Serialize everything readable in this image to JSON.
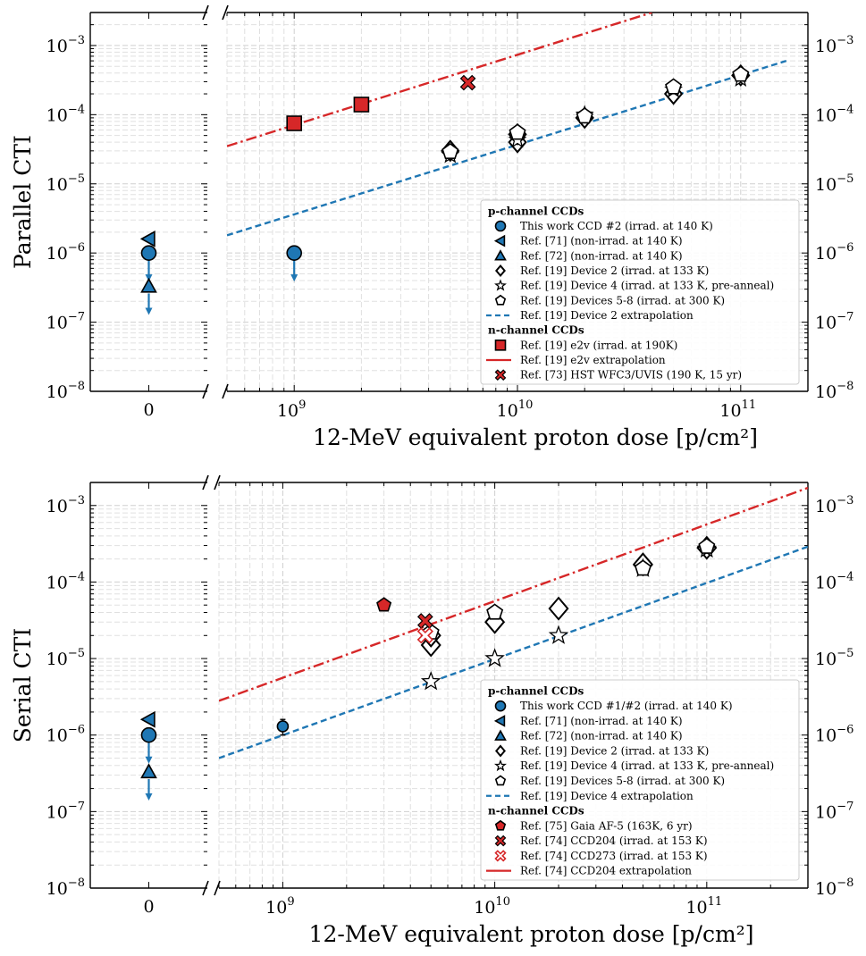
{
  "colors": {
    "blue": "#1f77b4",
    "red": "#d62728",
    "white": "#ffffff",
    "black": "#000000"
  },
  "chart_data": [
    {
      "type": "scatter",
      "ylabel": "Parallel CTI",
      "xlabel": "12-MeV equivalent proton dose [p/cm²]",
      "xscale": "log",
      "yscale": "log",
      "broken_x_axis": true,
      "left_panel_xlim": [
        -0.4,
        0.4
      ],
      "left_panel_xticks": [
        "0"
      ],
      "xlim": [
        500000000,
        200000000000
      ],
      "ylim": [
        1e-08,
        0.003
      ],
      "xticks": [
        {
          "v": 1000000000.0,
          "b": "10",
          "e": "9"
        },
        {
          "v": 10000000000.0,
          "b": "10",
          "e": "10"
        },
        {
          "v": 100000000000.0,
          "b": "10",
          "e": "11"
        }
      ],
      "yticks": [
        {
          "v": 1e-08,
          "b": "10",
          "e": "−8"
        },
        {
          "v": 1e-07,
          "b": "10",
          "e": "−7"
        },
        {
          "v": 1e-06,
          "b": "10",
          "e": "−6"
        },
        {
          "v": 1e-05,
          "b": "10",
          "e": "−5"
        },
        {
          "v": 0.0001,
          "b": "10",
          "e": "−4"
        },
        {
          "v": 0.001,
          "b": "10",
          "e": "−3"
        }
      ],
      "grid": true,
      "legend_position": "lower-right",
      "zero_panel": [
        {
          "marker": "triangle-left",
          "color": "#1f77b4",
          "x": 0,
          "y": 1.6e-06,
          "upper_limit": false
        },
        {
          "marker": "circle",
          "color": "#1f77b4",
          "x": 0,
          "y": 1e-06,
          "upper_limit": true
        },
        {
          "marker": "triangle-up",
          "color": "#1f77b4",
          "x": 0,
          "y": 3.3e-07,
          "upper_limit": true
        }
      ],
      "series": [
        {
          "group": "p",
          "label": "This work CCD #2 (irrad. at 140 K)",
          "marker": "circle",
          "color": "#1f77b4",
          "size": 8,
          "points": [
            {
              "x": 1000000000.0,
              "y": 1e-06,
              "upper_limit": true
            }
          ]
        },
        {
          "group": "p",
          "label": "Ref. [71] (non-irrad. at 140 K)",
          "marker": "triangle-left",
          "color": "#1f77b4",
          "size": 8,
          "points": []
        },
        {
          "group": "p",
          "label": "Ref. [72] (non-irrad. at 140 K)",
          "marker": "triangle-up",
          "color": "#1f77b4",
          "size": 8,
          "points": []
        },
        {
          "group": "p",
          "label": "Ref. [19] Device 2 (irrad. at 133 K)",
          "marker": "diamond",
          "color": "#ffffff",
          "size": 11,
          "points": [
            {
              "x": 5000000000.0,
              "y": 3e-05
            },
            {
              "x": 10000000000.0,
              "y": 4e-05
            },
            {
              "x": 10000000000.0,
              "y": 5.2e-05
            },
            {
              "x": 20000000000.0,
              "y": 9e-05
            },
            {
              "x": 50000000000.0,
              "y": 0.0002
            },
            {
              "x": 100000000000.0,
              "y": 0.00037
            }
          ]
        },
        {
          "group": "p",
          "label": "Ref. [19] Device 4 (irrad. at 133 K, pre-anneal)",
          "marker": "star",
          "color": "#ffffff",
          "size": 9,
          "points": [
            {
              "x": 5000000000.0,
              "y": 2.6e-05
            },
            {
              "x": 10000000000.0,
              "y": 4.3e-05
            },
            {
              "x": 20000000000.0,
              "y": 0.0001
            },
            {
              "x": 50000000000.0,
              "y": 0.00023
            },
            {
              "x": 100000000000.0,
              "y": 0.00033
            }
          ]
        },
        {
          "group": "p",
          "label": "Ref. [19] Devices 5-8 (irrad. at 300 K)",
          "marker": "pentagon",
          "color": "#ffffff",
          "size": 9,
          "points": [
            {
              "x": 5000000000.0,
              "y": 2.9e-05
            },
            {
              "x": 10000000000.0,
              "y": 5.5e-05
            },
            {
              "x": 20000000000.0,
              "y": 9.5e-05
            },
            {
              "x": 50000000000.0,
              "y": 0.00025
            },
            {
              "x": 100000000000.0,
              "y": 0.00038
            }
          ]
        },
        {
          "group": "p",
          "label": "Ref. [19] Device 2 extrapolation",
          "line": "dashed",
          "color": "#1f77b4",
          "segment": [
            {
              "x": 500000000,
              "y": 1.8e-06
            },
            {
              "x": 160000000000,
              "y": 0.0006
            }
          ]
        },
        {
          "group": "n",
          "label": "Ref. [19] e2v (irrad. at 190K)",
          "marker": "square",
          "color": "#d62728",
          "size": 8,
          "points": [
            {
              "x": 1000000000.0,
              "y": 7.5e-05
            },
            {
              "x": 2000000000.0,
              "y": 0.00014
            }
          ]
        },
        {
          "group": "n",
          "label": "Ref. [19] e2v extrapolation",
          "line": "dashdot",
          "color": "#d62728",
          "segment": [
            {
              "x": 500000000,
              "y": 3.5e-05
            },
            {
              "x": 40000000000,
              "y": 0.003
            }
          ]
        },
        {
          "group": "n",
          "label": "Ref. [73] HST WFC3/UVIS (190 K, 15 yr)",
          "marker": "x-filled",
          "color": "#d62728",
          "size": 8,
          "points": [
            {
              "x": 6000000000.0,
              "y": 0.00029
            }
          ]
        }
      ],
      "legend": [
        {
          "kind": "head",
          "label": "p-channel CCDs"
        },
        {
          "kind": "item",
          "ref": 0
        },
        {
          "kind": "item",
          "ref": 1
        },
        {
          "kind": "item",
          "ref": 2
        },
        {
          "kind": "item",
          "ref": 3
        },
        {
          "kind": "item",
          "ref": 4
        },
        {
          "kind": "item",
          "ref": 5
        },
        {
          "kind": "item",
          "ref": 6
        },
        {
          "kind": "head",
          "label": "n-channel CCDs"
        },
        {
          "kind": "item",
          "ref": 7
        },
        {
          "kind": "item",
          "ref": 8
        },
        {
          "kind": "item",
          "ref": 9
        }
      ]
    },
    {
      "type": "scatter",
      "ylabel": "Serial CTI",
      "xlabel": "12-MeV equivalent proton dose [p/cm²]",
      "xscale": "log",
      "yscale": "log",
      "broken_x_axis": true,
      "left_panel_xlim": [
        -0.4,
        0.4
      ],
      "left_panel_xticks": [
        "0"
      ],
      "xlim": [
        500000000,
        300000000000
      ],
      "ylim": [
        1e-08,
        0.002
      ],
      "xticks": [
        {
          "v": 1000000000.0,
          "b": "10",
          "e": "9"
        },
        {
          "v": 10000000000.0,
          "b": "10",
          "e": "10"
        },
        {
          "v": 100000000000.0,
          "b": "10",
          "e": "11"
        }
      ],
      "yticks": [
        {
          "v": 1e-08,
          "b": "10",
          "e": "−8"
        },
        {
          "v": 1e-07,
          "b": "10",
          "e": "−7"
        },
        {
          "v": 1e-06,
          "b": "10",
          "e": "−6"
        },
        {
          "v": 1e-05,
          "b": "10",
          "e": "−5"
        },
        {
          "v": 0.0001,
          "b": "10",
          "e": "−4"
        },
        {
          "v": 0.001,
          "b": "10",
          "e": "−3"
        }
      ],
      "grid": true,
      "legend_position": "lower-right",
      "zero_panel": [
        {
          "marker": "triangle-left",
          "color": "#1f77b4",
          "x": 0,
          "y": 1.6e-06,
          "upper_limit": false
        },
        {
          "marker": "circle",
          "color": "#1f77b4",
          "x": 0,
          "y": 1e-06,
          "upper_limit": true
        },
        {
          "marker": "triangle-up",
          "color": "#1f77b4",
          "x": 0,
          "y": 3.3e-07,
          "upper_limit": true
        }
      ],
      "series": [
        {
          "group": "p",
          "label": "This work CCD #1/#2 (irrad. at 140 K)",
          "marker": "circle",
          "color": "#1f77b4",
          "size": 6,
          "points": [
            {
              "x": 1000000000.0,
              "y": 1.3e-06,
              "yerr": [
                1e-06,
                1.6e-06
              ]
            }
          ]
        },
        {
          "group": "p",
          "label": "Ref. [71] (non-irrad. at 140 K)",
          "marker": "triangle-left",
          "color": "#1f77b4",
          "size": 8,
          "points": []
        },
        {
          "group": "p",
          "label": "Ref. [72] (non-irrad. at 140 K)",
          "marker": "triangle-up",
          "color": "#1f77b4",
          "size": 8,
          "points": []
        },
        {
          "group": "p",
          "label": "Ref. [19] Device 2 (irrad. at 133 K)",
          "marker": "diamond",
          "color": "#ffffff",
          "size": 12,
          "points": [
            {
              "x": 5000000000.0,
              "y": 1.5e-05
            },
            {
              "x": 5000000000.0,
              "y": 2e-05
            },
            {
              "x": 10000000000.0,
              "y": 3e-05
            },
            {
              "x": 20000000000.0,
              "y": 4.5e-05
            },
            {
              "x": 50000000000.0,
              "y": 0.00017
            },
            {
              "x": 100000000000.0,
              "y": 0.00028
            }
          ]
        },
        {
          "group": "p",
          "label": "Ref. [19] Device 4 (irrad. at 133 K, pre-anneal)",
          "marker": "star",
          "color": "#ffffff",
          "size": 10,
          "points": [
            {
              "x": 5000000000.0,
              "y": 5e-06
            },
            {
              "x": 10000000000.0,
              "y": 1e-05
            },
            {
              "x": 20000000000.0,
              "y": 2e-05
            },
            {
              "x": 50000000000.0,
              "y": 0.00015
            },
            {
              "x": 100000000000.0,
              "y": 0.00027
            }
          ]
        },
        {
          "group": "p",
          "label": "Ref. [19] Devices 5-8 (irrad. at 300 K)",
          "marker": "pentagon",
          "color": "#ffffff",
          "size": 9,
          "points": [
            {
              "x": 5000000000.0,
              "y": 2.2e-05
            },
            {
              "x": 10000000000.0,
              "y": 4e-05
            },
            {
              "x": 50000000000.0,
              "y": 0.00015
            },
            {
              "x": 100000000000.0,
              "y": 0.00029
            }
          ]
        },
        {
          "group": "p",
          "label": "Ref. [19] Device 4 extrapolation",
          "line": "dashed",
          "color": "#1f77b4",
          "segment": [
            {
              "x": 500000000,
              "y": 5e-07
            },
            {
              "x": 300000000000,
              "y": 0.00029
            }
          ]
        },
        {
          "group": "n",
          "label": "Ref. [75] Gaia AF-5 (163K, 6 yr)",
          "marker": "pentagon",
          "color": "#d62728",
          "size": 8,
          "points": [
            {
              "x": 3000000000.0,
              "y": 5e-05
            }
          ]
        },
        {
          "group": "n",
          "label": "Ref. [74] CCD204 (irrad. at 153 K)",
          "marker": "x-filled",
          "color": "#d62728",
          "size": 8,
          "points": [
            {
              "x": 4700000000.0,
              "y": 3.1e-05
            }
          ]
        },
        {
          "group": "n",
          "label": "Ref. [74] CCD273 (irrad. at 153 K)",
          "marker": "x-open",
          "color": "#d62728",
          "size": 8,
          "points": [
            {
              "x": 4700000000.0,
              "y": 2e-05
            }
          ]
        },
        {
          "group": "n",
          "label": "Ref. [74] CCD204 extrapolation",
          "line": "dashdot",
          "color": "#d62728",
          "segment": [
            {
              "x": 500000000,
              "y": 2.8e-06
            },
            {
              "x": 300000000000,
              "y": 0.0017
            }
          ]
        }
      ],
      "legend": [
        {
          "kind": "head",
          "label": "p-channel CCDs"
        },
        {
          "kind": "item",
          "ref": 0
        },
        {
          "kind": "item",
          "ref": 1
        },
        {
          "kind": "item",
          "ref": 2
        },
        {
          "kind": "item",
          "ref": 3
        },
        {
          "kind": "item",
          "ref": 4
        },
        {
          "kind": "item",
          "ref": 5
        },
        {
          "kind": "item",
          "ref": 6
        },
        {
          "kind": "head",
          "label": "n-channel CCDs"
        },
        {
          "kind": "item",
          "ref": 7
        },
        {
          "kind": "item",
          "ref": 8
        },
        {
          "kind": "item",
          "ref": 9
        },
        {
          "kind": "item",
          "ref": 10
        }
      ]
    }
  ]
}
